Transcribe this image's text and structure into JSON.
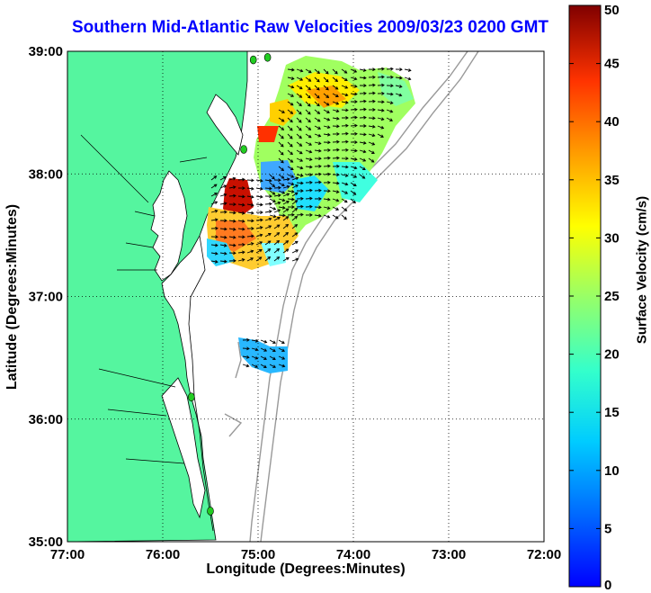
{
  "title": "Southern Mid-Atlantic Raw Velocities 2009/03/23 0200 GMT",
  "xlabel": "Longitude (Degrees:Minutes)",
  "ylabel": "Latitude (Degrees:Minutes)",
  "colorbar": {
    "label": "Surface Velocity (cm/s)",
    "min": 0,
    "max": 50,
    "ticks": [
      "0",
      "5",
      "10",
      "15",
      "20",
      "25",
      "30",
      "35",
      "40",
      "45",
      "50"
    ],
    "colormap": "jet"
  },
  "map": {
    "x_ticks": [
      "77:00",
      "76:00",
      "75:00",
      "74:00",
      "73:00",
      "72:00"
    ],
    "y_ticks": [
      "35:00",
      "36:00",
      "37:00",
      "38:00",
      "39:00"
    ],
    "lon_range": [
      -77,
      -72
    ],
    "lat_range": [
      35,
      39
    ],
    "grid": "dotted",
    "colors": {
      "land": "#55f59f",
      "coast": "#000000",
      "isobath": "#999999",
      "station": "#22cc22"
    },
    "stations": [
      {
        "lon": -74.9,
        "lat": 38.95
      },
      {
        "lon": -75.15,
        "lat": 38.2
      },
      {
        "lon": -75.05,
        "lat": 38.93
      },
      {
        "lon": -75.7,
        "lat": 36.18
      },
      {
        "lon": -75.5,
        "lat": 35.25
      }
    ]
  }
}
